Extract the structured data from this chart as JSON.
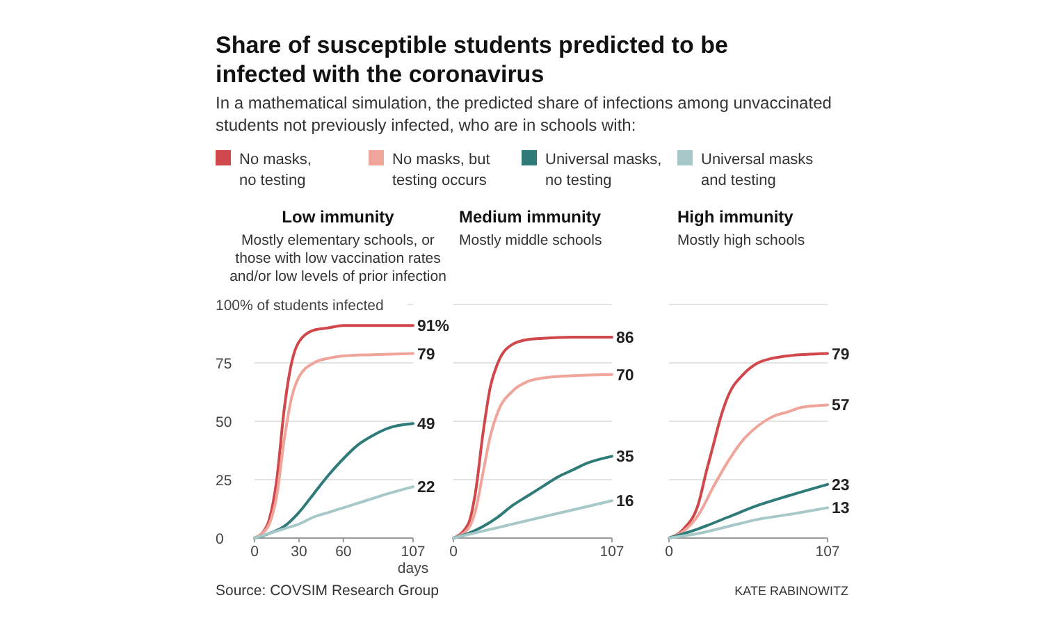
{
  "chart_data": [
    {
      "type": "line",
      "title": "Share of susceptible students predicted to be infected with the coronavirus",
      "subtitle": "In a mathematical simulation, the predicted share of infections among unvaccinated students not previously infected, who are in schools with:",
      "xlabel": "days",
      "legend": "top",
      "grid": "y",
      "xlim": [
        0,
        107
      ],
      "xticks": [
        0,
        30,
        60,
        107
      ],
      "ylim": [
        0,
        100
      ],
      "yticks": [
        0,
        25,
        50,
        75,
        {
          "value": 100,
          "label": "100% of students infected"
        }
      ],
      "annotations": [
        "Low immunity",
        "Mostly elementary schools, or those with low vaccination rates and/or low levels of prior infection",
        "Source: COVSIM Research Group"
      ],
      "series": [
        {
          "name": "No masks, no testing",
          "color": "#d0474c",
          "x": [
            0,
            5,
            10,
            15,
            20,
            25,
            30,
            40,
            50,
            60,
            80,
            107
          ],
          "values": [
            0,
            2,
            8,
            25,
            55,
            75,
            84,
            89,
            90,
            91,
            91,
            91
          ],
          "value_labels": [
            null,
            null,
            null,
            null,
            null,
            null,
            null,
            null,
            null,
            null,
            null,
            "91%"
          ]
        },
        {
          "name": "No masks, but testing occurs",
          "color": "#f0a59a",
          "x": [
            0,
            5,
            10,
            15,
            20,
            25,
            30,
            40,
            50,
            60,
            80,
            107
          ],
          "values": [
            0,
            2,
            6,
            18,
            42,
            60,
            69,
            75,
            77,
            78,
            78.5,
            79
          ],
          "value_labels": [
            null,
            null,
            null,
            null,
            null,
            null,
            null,
            null,
            null,
            null,
            null,
            "79"
          ]
        },
        {
          "name": "Universal masks, no testing",
          "color": "#2f7b7a",
          "x": [
            0,
            10,
            20,
            30,
            40,
            50,
            60,
            70,
            80,
            90,
            107
          ],
          "values": [
            0,
            2,
            5,
            11,
            19,
            27,
            34,
            40,
            44,
            47,
            49
          ],
          "value_labels": [
            null,
            null,
            null,
            null,
            null,
            null,
            null,
            null,
            null,
            null,
            "49"
          ]
        },
        {
          "name": "Universal masks and testing",
          "color": "#a6c8c8",
          "x": [
            0,
            10,
            20,
            30,
            40,
            50,
            60,
            70,
            80,
            90,
            107
          ],
          "values": [
            0,
            2,
            4,
            6,
            9,
            11,
            13,
            15,
            17,
            19,
            22
          ],
          "value_labels": [
            null,
            null,
            null,
            null,
            null,
            null,
            null,
            null,
            null,
            null,
            "22"
          ]
        }
      ]
    },
    {
      "type": "line",
      "grid": "y",
      "tick_labels": "x",
      "xlim": [
        0,
        107
      ],
      "xticks": [
        0,
        107
      ],
      "ylim": [
        0,
        100
      ],
      "yticks": [
        0,
        25,
        50,
        75,
        100
      ],
      "annotations": [
        "Medium immunity",
        "Mostly middle schools"
      ],
      "series": [
        {
          "color": "#d0474c",
          "x": [
            0,
            10,
            15,
            20,
            25,
            30,
            40,
            50,
            60,
            80,
            107
          ],
          "values": [
            0,
            6,
            20,
            45,
            65,
            75,
            83,
            85,
            85.5,
            86,
            86
          ],
          "value_labels": [
            null,
            null,
            null,
            null,
            null,
            null,
            null,
            null,
            null,
            null,
            "86"
          ]
        },
        {
          "color": "#f0a59a",
          "x": [
            0,
            10,
            15,
            20,
            25,
            30,
            40,
            50,
            60,
            80,
            107
          ],
          "values": [
            0,
            4,
            12,
            28,
            44,
            54,
            63,
            67,
            68.5,
            69.5,
            70
          ],
          "value_labels": [
            null,
            null,
            null,
            null,
            null,
            null,
            null,
            null,
            null,
            null,
            "70"
          ]
        },
        {
          "color": "#2f7b7a",
          "x": [
            0,
            10,
            20,
            30,
            40,
            50,
            60,
            70,
            80,
            90,
            107
          ],
          "values": [
            0,
            2,
            5,
            9,
            14,
            18,
            22,
            26,
            29,
            32,
            35
          ],
          "value_labels": [
            null,
            null,
            null,
            null,
            null,
            null,
            null,
            null,
            null,
            null,
            "35"
          ]
        },
        {
          "color": "#a6c8c8",
          "x": [
            0,
            20,
            40,
            60,
            80,
            107
          ],
          "values": [
            0,
            3,
            6,
            9,
            12,
            16
          ],
          "value_labels": [
            null,
            null,
            null,
            null,
            null,
            "16"
          ]
        }
      ]
    },
    {
      "type": "line",
      "grid": "y",
      "tick_labels": "x",
      "xlim": [
        0,
        107
      ],
      "xticks": [
        0,
        107
      ],
      "ylim": [
        0,
        100
      ],
      "yticks": [
        0,
        25,
        50,
        75,
        100
      ],
      "annotations": [
        "High immunity",
        "Mostly high schools",
        "KATE RABINOWITZ"
      ],
      "series": [
        {
          "color": "#d0474c",
          "x": [
            0,
            10,
            20,
            25,
            30,
            35,
            40,
            50,
            60,
            70,
            80,
            107
          ],
          "values": [
            0,
            4,
            15,
            28,
            40,
            52,
            61,
            70,
            75,
            77,
            78,
            79
          ],
          "value_labels": [
            null,
            null,
            null,
            null,
            null,
            null,
            null,
            null,
            null,
            null,
            null,
            "79"
          ]
        },
        {
          "color": "#f0a59a",
          "x": [
            0,
            10,
            20,
            30,
            40,
            50,
            60,
            70,
            80,
            90,
            107
          ],
          "values": [
            0,
            3,
            10,
            22,
            33,
            42,
            48,
            52,
            54,
            56,
            57
          ],
          "value_labels": [
            null,
            null,
            null,
            null,
            null,
            null,
            null,
            null,
            null,
            null,
            "57"
          ]
        },
        {
          "color": "#2f7b7a",
          "x": [
            0,
            20,
            40,
            60,
            80,
            107
          ],
          "values": [
            0,
            4,
            9,
            14,
            18,
            23
          ],
          "value_labels": [
            null,
            null,
            null,
            null,
            null,
            "23"
          ]
        },
        {
          "color": "#a6c8c8",
          "x": [
            0,
            20,
            40,
            60,
            80,
            107
          ],
          "values": [
            0,
            2,
            5,
            8,
            10,
            13
          ],
          "value_labels": [
            null,
            null,
            null,
            null,
            null,
            "13"
          ]
        }
      ]
    }
  ]
}
